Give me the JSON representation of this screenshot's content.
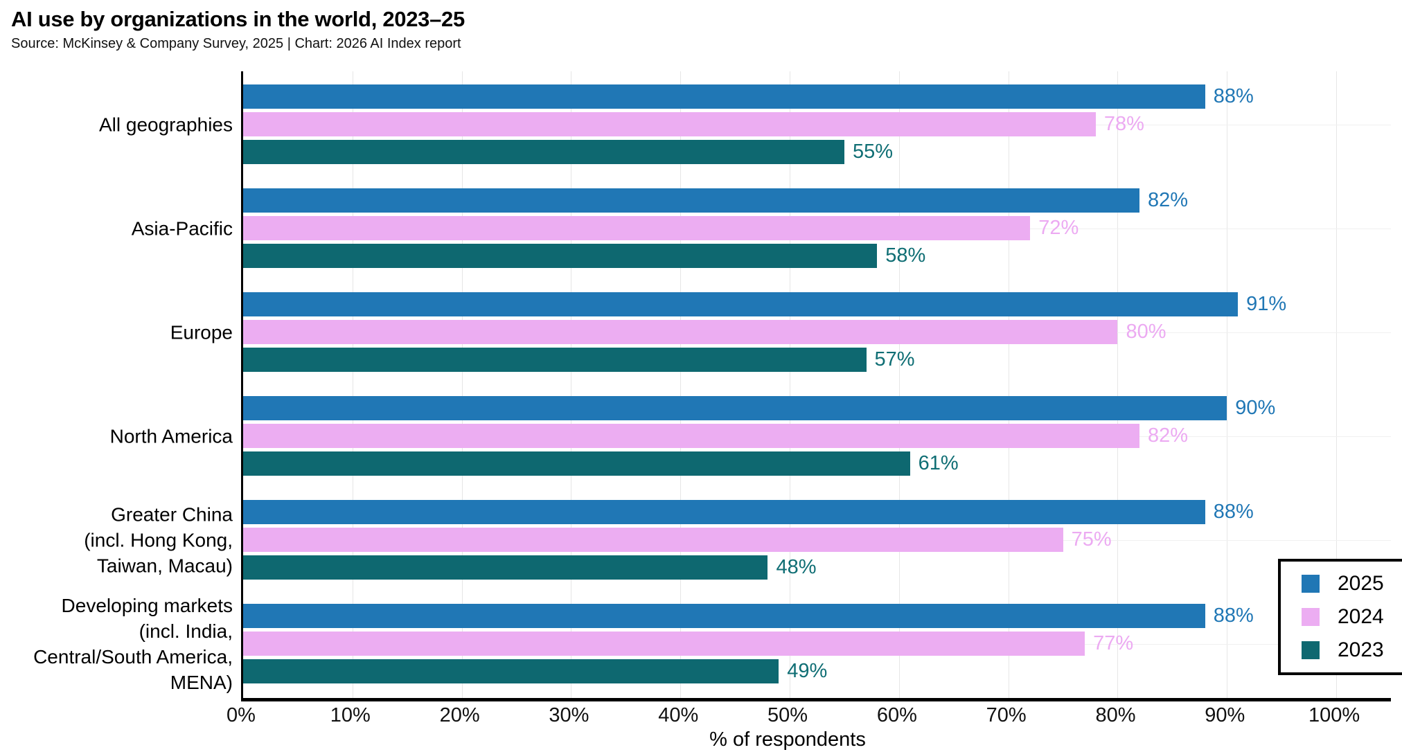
{
  "chart_data": {
    "type": "bar",
    "orientation": "horizontal",
    "title": "AI use by organizations in the world, 2023–25",
    "source": "Source: McKinsey & Company Survey, 2025 | Chart: 2026 AI Index report",
    "xlabel": "% of respondents",
    "xlim": [
      0,
      105
    ],
    "xtick_step_pct": 10,
    "xticks": [
      "0%",
      "10%",
      "20%",
      "30%",
      "40%",
      "50%",
      "60%",
      "70%",
      "80%",
      "90%",
      "100%"
    ],
    "grid": true,
    "legend_position": "bottom-right",
    "categories": [
      {
        "label_lines": [
          "All geographies"
        ]
      },
      {
        "label_lines": [
          "Asia-Pacific"
        ]
      },
      {
        "label_lines": [
          "Europe"
        ]
      },
      {
        "label_lines": [
          "North America"
        ]
      },
      {
        "label_lines": [
          "Greater China",
          "(incl. Hong Kong,",
          "Taiwan, Macau)"
        ]
      },
      {
        "label_lines": [
          "Developing markets",
          "(incl. India,",
          "Central/South America,",
          "MENA)"
        ]
      }
    ],
    "series": [
      {
        "name": "2025",
        "color": "#2077b5",
        "label_color": "#2077b5",
        "values": [
          88,
          82,
          91,
          90,
          88,
          88
        ]
      },
      {
        "name": "2024",
        "color": "#ecadf2",
        "label_color": "#ecaaf2",
        "values": [
          78,
          72,
          80,
          82,
          75,
          77
        ]
      },
      {
        "name": "2023",
        "color": "#0e6870",
        "label_color": "#0f6e74",
        "values": [
          55,
          58,
          57,
          61,
          48,
          49
        ]
      }
    ],
    "value_suffix": "%",
    "colors": {
      "axis": "#000000",
      "vgrid": "#e6e6e6",
      "hgrid": "#f0f0f0",
      "background": "#ffffff"
    }
  }
}
